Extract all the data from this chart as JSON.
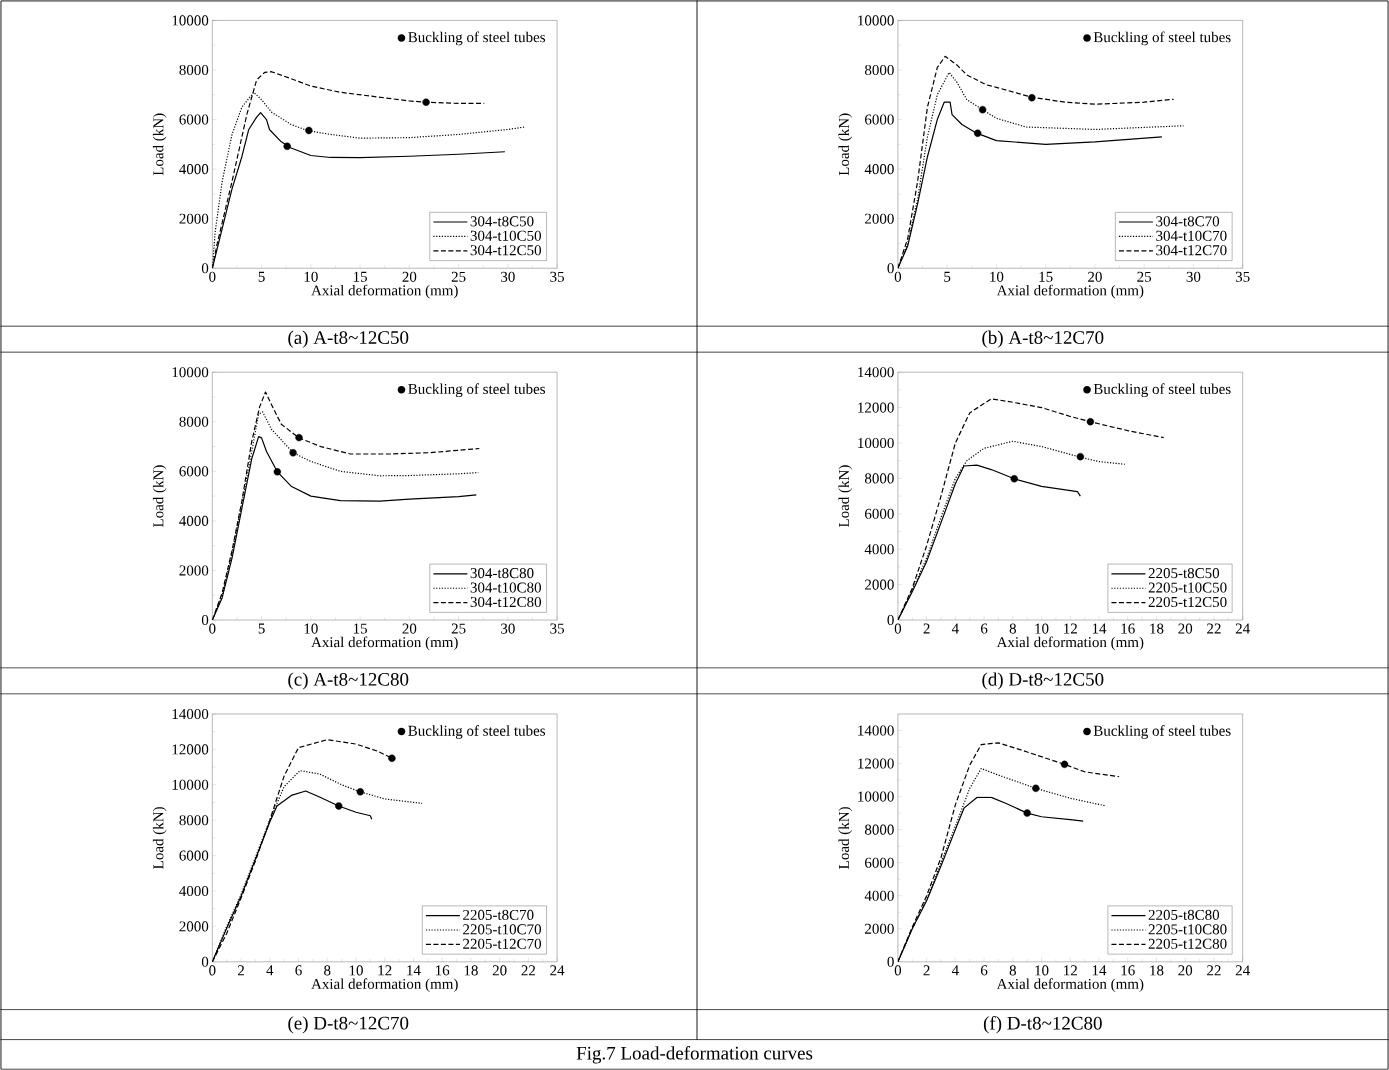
{
  "chart_data": [
    {
      "type": "line",
      "title": "(a) A-t8~12C50",
      "xlabel": "Axial deformation (mm)",
      "ylabel": "Load (kN)",
      "xlim": [
        0,
        35
      ],
      "ylim": [
        0,
        10000
      ],
      "xticks": [
        0,
        5,
        10,
        15,
        20,
        25,
        30,
        35
      ],
      "yticks": [
        0,
        2000,
        4000,
        6000,
        8000,
        10000
      ],
      "legend": "right",
      "series": [
        {
          "name": "304-t8C50",
          "color": "#000000",
          "line_style": "solid",
          "x": [
            0,
            1,
            2,
            3,
            3.7,
            4.5,
            4.9,
            5.5,
            5.8,
            7,
            8,
            10,
            12,
            15,
            20,
            25,
            29.7
          ],
          "values": [
            0,
            1600,
            3200,
            4500,
            5600,
            6100,
            6280,
            6000,
            5600,
            5100,
            4850,
            4550,
            4470,
            4460,
            4520,
            4600,
            4700
          ]
        },
        {
          "name": "304-t10C50",
          "color": "#000000",
          "line_style": "dotted",
          "x": [
            0,
            0.3,
            1,
            2,
            3,
            4.2,
            5,
            6,
            8,
            9.7,
            12,
            15,
            20,
            25,
            30,
            31.7
          ],
          "values": [
            0,
            1500,
            3500,
            5400,
            6500,
            7100,
            6800,
            6300,
            5800,
            5550,
            5400,
            5250,
            5270,
            5400,
            5600,
            5700
          ]
        },
        {
          "name": "304-t12C50",
          "color": "#000000",
          "line_style": "dashed",
          "x": [
            0,
            0.5,
            2,
            3.5,
            4.5,
            5.3,
            6,
            8,
            10,
            13,
            16,
            20,
            21.7,
            25,
            27.6
          ],
          "values": [
            0,
            1000,
            3500,
            6200,
            7600,
            7900,
            7930,
            7650,
            7350,
            7100,
            6950,
            6750,
            6700,
            6650,
            6650
          ]
        },
        {
          "name": "Buckling of steel tubes",
          "type": "scatter",
          "marker": "circle",
          "color": "#000000",
          "x": [
            7.6,
            9.8,
            21.7
          ],
          "values": [
            4920,
            5560,
            6700
          ]
        }
      ]
    },
    {
      "type": "line",
      "title": "(b) A-t8~12C70",
      "xlabel": "Axial deformation (mm)",
      "ylabel": "Load (kN)",
      "xlim": [
        0,
        35
      ],
      "ylim": [
        0,
        10000
      ],
      "xticks": [
        0,
        5,
        10,
        15,
        20,
        25,
        30,
        35
      ],
      "yticks": [
        0,
        2000,
        4000,
        6000,
        8000,
        10000
      ],
      "legend": "right",
      "series": [
        {
          "name": "304-t8C70",
          "color": "#000000",
          "line_style": "solid",
          "x": [
            0,
            1,
            2,
            3,
            4,
            4.7,
            5.3,
            5.5,
            6.5,
            8,
            10,
            15,
            20,
            26.8
          ],
          "values": [
            0,
            900,
            2600,
            4500,
            6000,
            6700,
            6700,
            6200,
            5800,
            5450,
            5150,
            5000,
            5100,
            5300
          ]
        },
        {
          "name": "304-t10C70",
          "color": "#000000",
          "line_style": "dotted",
          "x": [
            0,
            1,
            2,
            3,
            4,
            5.2,
            6,
            7,
            8.6,
            10,
            13,
            20,
            29
          ],
          "values": [
            0,
            1000,
            2800,
            5300,
            7000,
            7900,
            7500,
            6800,
            6400,
            6050,
            5700,
            5600,
            5750
          ]
        },
        {
          "name": "304-t12C70",
          "color": "#000000",
          "line_style": "dashed",
          "x": [
            0,
            1,
            2,
            3,
            4,
            4.8,
            6,
            7,
            9,
            10,
            13.6,
            17,
            20,
            25,
            28
          ],
          "values": [
            0,
            1200,
            3500,
            6500,
            8100,
            8550,
            8200,
            7800,
            7400,
            7300,
            6900,
            6700,
            6620,
            6700,
            6820
          ]
        },
        {
          "name": "Buckling of steel tubes",
          "type": "scatter",
          "marker": "circle",
          "color": "#000000",
          "x": [
            8.1,
            8.6,
            13.6
          ],
          "values": [
            5450,
            6400,
            6880
          ]
        }
      ]
    },
    {
      "type": "line",
      "title": "(c) A-t8~12C80",
      "xlabel": "Axial deformation (mm)",
      "ylabel": "Load (kN)",
      "xlim": [
        0,
        35
      ],
      "ylim": [
        0,
        10000
      ],
      "xticks": [
        0,
        5,
        10,
        15,
        20,
        25,
        30,
        35
      ],
      "yticks": [
        0,
        2000,
        4000,
        6000,
        8000,
        10000
      ],
      "legend": "right",
      "series": [
        {
          "name": "304-t8C80",
          "color": "#000000",
          "line_style": "solid",
          "x": [
            0,
            1,
            2,
            3,
            4,
            4.7,
            5,
            5.5,
            6.6,
            8,
            10,
            13,
            17,
            20,
            25,
            26.8
          ],
          "values": [
            0,
            900,
            2500,
            4500,
            6500,
            7400,
            7350,
            6800,
            5980,
            5400,
            5000,
            4820,
            4800,
            4880,
            4980,
            5050
          ]
        },
        {
          "name": "304-t10C80",
          "color": "#000000",
          "line_style": "dotted",
          "x": [
            0,
            1,
            2,
            3,
            4,
            4.7,
            5.1,
            6,
            8.2,
            10,
            13,
            17,
            20,
            25,
            27
          ],
          "values": [
            0,
            1000,
            2700,
            4700,
            6800,
            8300,
            8400,
            7700,
            6750,
            6400,
            6000,
            5820,
            5830,
            5900,
            5950
          ]
        },
        {
          "name": "304-t12C80",
          "color": "#000000",
          "line_style": "dashed",
          "x": [
            0,
            1,
            2,
            3,
            4,
            4.8,
            5.4,
            6,
            7,
            8.8,
            11,
            14,
            18,
            22,
            27.1
          ],
          "values": [
            0,
            1100,
            2800,
            4800,
            7200,
            8600,
            9200,
            8700,
            7900,
            7350,
            7000,
            6700,
            6700,
            6750,
            6920
          ]
        },
        {
          "name": "Buckling of steel tubes",
          "type": "scatter",
          "marker": "circle",
          "color": "#000000",
          "x": [
            6.6,
            8.2,
            8.8
          ],
          "values": [
            5980,
            6750,
            7360
          ]
        }
      ]
    },
    {
      "type": "line",
      "title": "(d) D-t8~12C50",
      "xlabel": "Axial deformation (mm)",
      "ylabel": "Load (kN)",
      "xlim": [
        0,
        24
      ],
      "ylim": [
        0,
        14000
      ],
      "xticks": [
        0,
        2,
        4,
        6,
        8,
        10,
        12,
        14,
        16,
        18,
        20,
        22,
        24
      ],
      "yticks": [
        0,
        2000,
        4000,
        6000,
        8000,
        10000,
        12000,
        14000
      ],
      "legend": "right",
      "series": [
        {
          "name": "2205-t8C50",
          "color": "#000000",
          "line_style": "solid",
          "x": [
            0,
            1,
            2,
            3,
            4,
            4.6,
            5.5,
            6.5,
            8.1,
            10,
            12.5,
            12.7
          ],
          "values": [
            0,
            1600,
            3300,
            5500,
            7700,
            8700,
            8750,
            8500,
            7980,
            7550,
            7250,
            7000
          ]
        },
        {
          "name": "2205-t10C50",
          "color": "#000000",
          "line_style": "dotted",
          "x": [
            0,
            1,
            2,
            3,
            4,
            4.8,
            6,
            8,
            10,
            12.7,
            14,
            15.8
          ],
          "values": [
            0,
            1700,
            3500,
            5800,
            8000,
            9000,
            9700,
            10100,
            9800,
            9200,
            8950,
            8800
          ]
        },
        {
          "name": "2205-t12C50",
          "color": "#000000",
          "line_style": "dashed",
          "x": [
            0,
            1,
            2,
            3,
            4,
            5,
            6.5,
            8,
            10,
            12,
            13.4,
            16,
            18.5
          ],
          "values": [
            0,
            1800,
            4200,
            7000,
            10000,
            11700,
            12500,
            12300,
            12000,
            11500,
            11200,
            10700,
            10300
          ]
        },
        {
          "name": "Buckling of steel tubes",
          "type": "scatter",
          "marker": "circle",
          "color": "#000000",
          "x": [
            8.1,
            12.7,
            13.4
          ],
          "values": [
            7980,
            9230,
            11200
          ]
        }
      ]
    },
    {
      "type": "line",
      "title": "(e) D-t8~12C70",
      "xlabel": "Axial deformation (mm)",
      "ylabel": "Load (kN)",
      "xlim": [
        0,
        24
      ],
      "ylim": [
        0,
        14000
      ],
      "xticks": [
        0,
        2,
        4,
        6,
        8,
        10,
        12,
        14,
        16,
        18,
        20,
        22,
        24
      ],
      "yticks": [
        0,
        2000,
        4000,
        6000,
        8000,
        10000,
        12000,
        14000
      ],
      "legend": "right",
      "series": [
        {
          "name": "2205-t8C70",
          "color": "#000000",
          "line_style": "solid",
          "x": [
            0,
            1,
            2,
            3,
            4,
            4.5,
            5.5,
            6.5,
            7.5,
            8.8,
            10,
            11,
            11.1
          ],
          "values": [
            0,
            1900,
            3700,
            5800,
            7900,
            8800,
            9400,
            9650,
            9300,
            8800,
            8450,
            8250,
            8050
          ]
        },
        {
          "name": "2205-t10C70",
          "color": "#000000",
          "line_style": "dotted",
          "x": [
            0,
            1,
            2,
            3,
            4,
            5,
            6.1,
            7.5,
            9,
            10.3,
            12,
            14.6
          ],
          "values": [
            0,
            2000,
            3800,
            5900,
            8000,
            9900,
            10800,
            10600,
            10000,
            9600,
            9200,
            8950
          ]
        },
        {
          "name": "2205-t12C70",
          "color": "#000000",
          "line_style": "dashed",
          "x": [
            0,
            1,
            2,
            3,
            4,
            5,
            6,
            8,
            10,
            11.5,
            12.5
          ],
          "values": [
            0,
            1600,
            3600,
            5700,
            8000,
            10500,
            12100,
            12550,
            12300,
            11900,
            11500
          ]
        },
        {
          "name": "Buckling of steel tubes",
          "type": "scatter",
          "marker": "circle",
          "color": "#000000",
          "x": [
            8.8,
            10.3,
            12.5
          ],
          "values": [
            8800,
            9600,
            11500
          ]
        }
      ]
    },
    {
      "type": "line",
      "title": "(f) D-t8~12C80",
      "xlabel": "Axial deformation (mm)",
      "ylabel": "Load (kN)",
      "xlim": [
        0,
        24
      ],
      "ylim": [
        0,
        15000
      ],
      "xticks": [
        0,
        2,
        4,
        6,
        8,
        10,
        12,
        14,
        16,
        18,
        20,
        22,
        24
      ],
      "yticks": [
        0,
        2000,
        4000,
        6000,
        8000,
        10000,
        12000,
        14000
      ],
      "legend": "right",
      "annotations": [
        "Fig.7 Load-deformation curves"
      ],
      "series": [
        {
          "name": "2205-t8C80",
          "color": "#000000",
          "line_style": "solid",
          "x": [
            0,
            1,
            2,
            3,
            4,
            4.6,
            5.5,
            6.5,
            7.5,
            9,
            10,
            12,
            12.9
          ],
          "values": [
            0,
            2000,
            3700,
            5800,
            8000,
            9300,
            9950,
            9950,
            9600,
            9000,
            8780,
            8600,
            8520
          ]
        },
        {
          "name": "2205-t10C80",
          "color": "#000000",
          "line_style": "dotted",
          "x": [
            0,
            1,
            2,
            3,
            4,
            5,
            5.8,
            7,
            9.6,
            12,
            14.4
          ],
          "values": [
            0,
            2000,
            3800,
            6000,
            8200,
            10500,
            11700,
            11300,
            10500,
            9900,
            9450
          ]
        },
        {
          "name": "2205-t12C80",
          "color": "#000000",
          "line_style": "dashed",
          "x": [
            0,
            1,
            2,
            3,
            4,
            5,
            5.8,
            7,
            9,
            11.6,
            13,
            15.4
          ],
          "values": [
            0,
            2100,
            4000,
            6300,
            9500,
            11900,
            13150,
            13250,
            12700,
            11950,
            11500,
            11200
          ]
        },
        {
          "name": "Buckling of steel tubes",
          "type": "scatter",
          "marker": "circle",
          "color": "#000000",
          "x": [
            9,
            9.6,
            11.6
          ],
          "values": [
            9000,
            10500,
            11950
          ]
        }
      ]
    }
  ]
}
